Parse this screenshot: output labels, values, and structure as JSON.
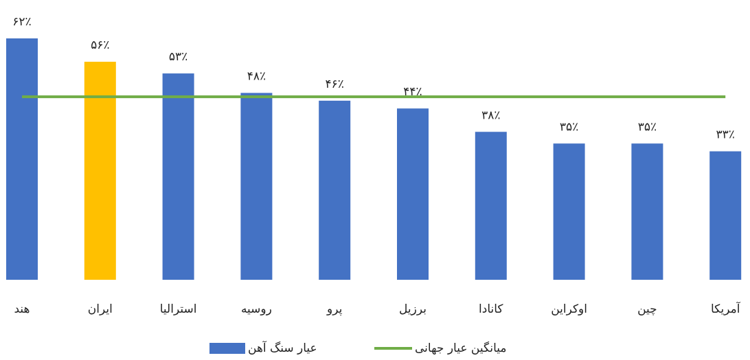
{
  "chart_data": {
    "type": "bar",
    "categories": [
      "هند",
      "ایران",
      "استرالیا",
      "روسیه",
      "پرو",
      "برزیل",
      "کانادا",
      "اوکراین",
      "چین",
      "آمریکا"
    ],
    "series": [
      {
        "name": "عیار سنگ آهن",
        "type": "bar",
        "color": "#4472c4",
        "colors": [
          "#4472c4",
          "#ffc000",
          "#4472c4",
          "#4472c4",
          "#4472c4",
          "#4472c4",
          "#4472c4",
          "#4472c4",
          "#4472c4",
          "#4472c4"
        ],
        "values": [
          62,
          56,
          53,
          48,
          46,
          44,
          38,
          35,
          35,
          33
        ],
        "value_labels": [
          "۶۲٪",
          "۵۶٪",
          "۵۳٪",
          "۴۸٪",
          "۴۶٪",
          "۴۴٪",
          "۳۸٪",
          "۳۵٪",
          "۳۵٪",
          "۳۳٪"
        ]
      },
      {
        "name": "میانگین عیار جهانی",
        "type": "line",
        "color": "#70ad47",
        "values": [
          47,
          47,
          47,
          47,
          47,
          47,
          47,
          47,
          47,
          47
        ]
      }
    ],
    "ylim": [
      0,
      62
    ],
    "grid": false,
    "legend": "bottom"
  }
}
